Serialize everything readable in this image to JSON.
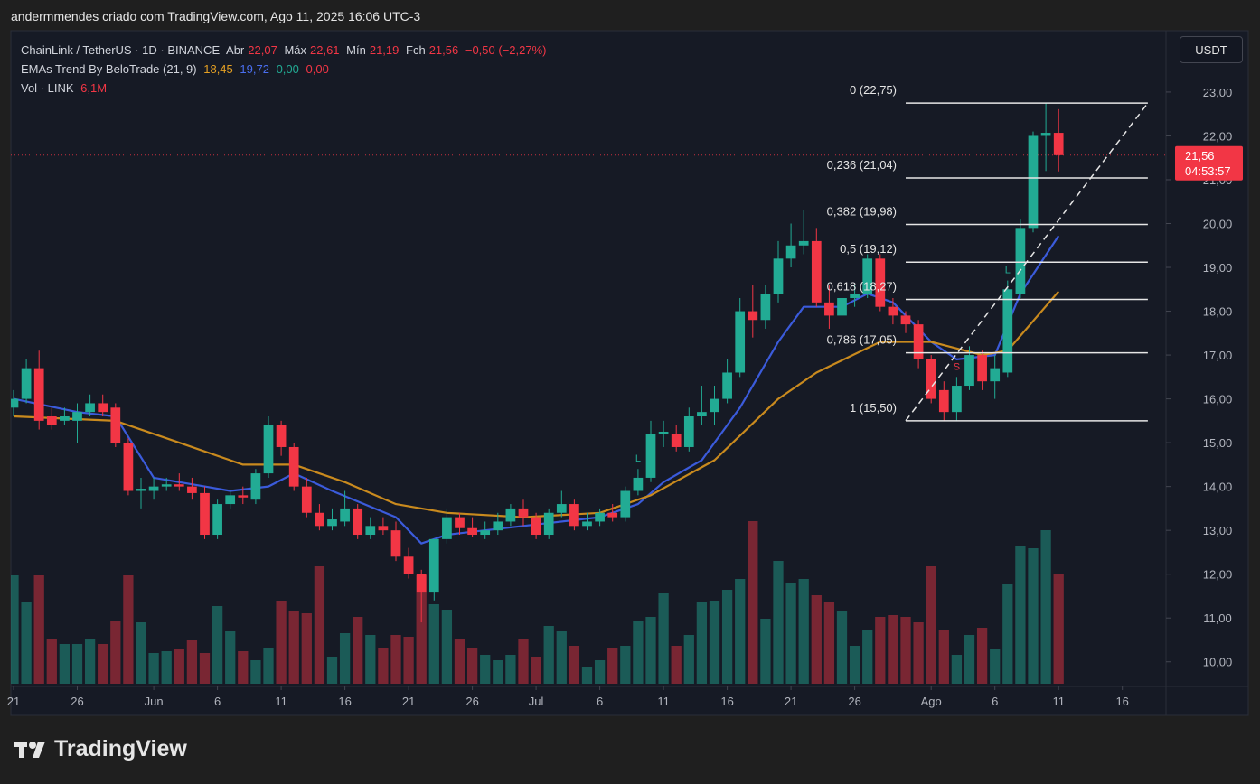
{
  "header": "andermmendes criado com TradingView.com, Ago 11, 2025 16:06 UTC-3",
  "footer": "TradingView",
  "currency": "USDT",
  "chart_data": {
    "type": "candlestick",
    "legend": {
      "symbol": "ChainLink / TetherUS · 1D · BINANCE",
      "open_label": "Abr",
      "open": "22,07",
      "high_label": "Máx",
      "high": "22,61",
      "low_label": "Mín",
      "low": "21,19",
      "close_label": "Fch",
      "close": "21,56",
      "change": "−0,50 (−2,27%)",
      "indicator": "EMAs Trend By BeloTrade (21, 9)",
      "indicator_values": [
        "18,45",
        "19,72",
        "0,00",
        "0,00"
      ],
      "volume_name": "Vol · LINK",
      "volume_value": "6,1M"
    },
    "x": [
      "2025-05-21",
      "2025-05-22",
      "2025-05-23",
      "2025-05-24",
      "2025-05-25",
      "2025-05-26",
      "2025-05-27",
      "2025-05-28",
      "2025-05-29",
      "2025-05-30",
      "2025-05-31",
      "2025-06-01",
      "2025-06-02",
      "2025-06-03",
      "2025-06-04",
      "2025-06-05",
      "2025-06-06",
      "2025-06-07",
      "2025-06-08",
      "2025-06-09",
      "2025-06-10",
      "2025-06-11",
      "2025-06-12",
      "2025-06-13",
      "2025-06-14",
      "2025-06-15",
      "2025-06-16",
      "2025-06-17",
      "2025-06-18",
      "2025-06-19",
      "2025-06-20",
      "2025-06-21",
      "2025-06-22",
      "2025-06-23",
      "2025-06-24",
      "2025-06-25",
      "2025-06-26",
      "2025-06-27",
      "2025-06-28",
      "2025-06-29",
      "2025-06-30",
      "2025-07-01",
      "2025-07-02",
      "2025-07-03",
      "2025-07-04",
      "2025-07-05",
      "2025-07-06",
      "2025-07-07",
      "2025-07-08",
      "2025-07-09",
      "2025-07-10",
      "2025-07-11",
      "2025-07-12",
      "2025-07-13",
      "2025-07-14",
      "2025-07-15",
      "2025-07-16",
      "2025-07-17",
      "2025-07-18",
      "2025-07-19",
      "2025-07-20",
      "2025-07-21",
      "2025-07-22",
      "2025-07-23",
      "2025-07-24",
      "2025-07-25",
      "2025-07-26",
      "2025-07-27",
      "2025-07-28",
      "2025-07-29",
      "2025-07-30",
      "2025-07-31",
      "2025-08-01",
      "2025-08-02",
      "2025-08-03",
      "2025-08-04",
      "2025-08-05",
      "2025-08-06",
      "2025-08-07",
      "2025-08-08",
      "2025-08-09",
      "2025-08-10",
      "2025-08-11"
    ],
    "open": [
      15.8,
      16.0,
      16.7,
      15.6,
      15.5,
      15.5,
      15.7,
      15.9,
      15.8,
      15.0,
      13.9,
      13.9,
      14.0,
      14.05,
      14.0,
      13.85,
      12.9,
      13.6,
      13.8,
      13.7,
      14.3,
      15.4,
      14.9,
      14.0,
      13.4,
      13.1,
      13.2,
      13.5,
      12.9,
      13.1,
      13.0,
      12.4,
      12.0,
      11.6,
      12.8,
      13.3,
      13.05,
      12.9,
      13.0,
      13.2,
      13.5,
      13.3,
      12.9,
      13.4,
      13.6,
      13.1,
      13.2,
      13.4,
      13.3,
      13.9,
      14.2,
      15.2,
      15.2,
      14.9,
      15.6,
      15.7,
      16.0,
      16.6,
      18.0,
      17.8,
      18.4,
      19.2,
      19.5,
      19.6,
      18.2,
      17.9,
      18.3,
      18.4,
      19.2,
      18.1,
      17.9,
      17.7,
      16.9,
      16.2,
      15.7,
      16.3,
      17.0,
      16.4,
      16.6,
      18.4,
      19.9,
      22.0,
      22.07
    ],
    "high": [
      16.2,
      16.9,
      17.1,
      15.8,
      15.8,
      15.9,
      16.1,
      16.1,
      15.9,
      15.1,
      14.2,
      14.2,
      14.2,
      14.3,
      14.2,
      14.0,
      13.7,
      13.9,
      14.0,
      14.4,
      15.6,
      15.5,
      15.0,
      14.2,
      13.6,
      13.5,
      13.9,
      13.6,
      13.3,
      13.3,
      13.2,
      12.6,
      12.1,
      12.8,
      13.5,
      13.4,
      13.3,
      13.2,
      13.4,
      13.6,
      13.7,
      13.4,
      13.5,
      13.9,
      13.7,
      13.4,
      13.5,
      13.6,
      14.0,
      14.4,
      15.5,
      15.5,
      15.4,
      15.8,
      16.3,
      16.3,
      16.9,
      18.3,
      18.6,
      18.6,
      19.6,
      20.0,
      20.3,
      19.9,
      18.6,
      18.4,
      18.6,
      19.3,
      19.3,
      18.3,
      18.0,
      17.8,
      17.0,
      16.4,
      16.5,
      17.2,
      17.1,
      17.0,
      18.7,
      20.1,
      22.1,
      22.75,
      22.61
    ],
    "low": [
      15.6,
      15.9,
      15.3,
      15.3,
      15.4,
      15.0,
      15.6,
      15.6,
      14.9,
      13.8,
      13.5,
      13.7,
      13.9,
      13.9,
      13.7,
      12.8,
      12.8,
      13.5,
      13.6,
      13.6,
      14.2,
      14.7,
      13.9,
      13.3,
      13.0,
      13.0,
      13.1,
      12.8,
      12.8,
      12.9,
      12.3,
      11.9,
      10.9,
      11.4,
      12.7,
      12.9,
      12.85,
      12.8,
      12.9,
      13.1,
      13.1,
      12.8,
      12.8,
      13.3,
      13.0,
      13.0,
      13.1,
      13.2,
      13.2,
      13.8,
      14.1,
      14.9,
      14.8,
      14.8,
      15.4,
      15.4,
      15.9,
      16.5,
      17.4,
      17.6,
      18.2,
      19.0,
      19.3,
      18.1,
      17.6,
      17.6,
      18.1,
      18.3,
      18.0,
      17.7,
      17.5,
      16.7,
      15.9,
      15.5,
      15.5,
      16.2,
      16.2,
      16.0,
      16.5,
      18.3,
      19.8,
      21.2,
      21.19
    ],
    "close": [
      16.0,
      16.7,
      15.5,
      15.4,
      15.6,
      15.7,
      15.9,
      15.7,
      15.0,
      13.9,
      13.95,
      14.0,
      14.05,
      14.0,
      13.85,
      12.9,
      13.6,
      13.8,
      13.75,
      14.3,
      15.4,
      14.9,
      14.0,
      13.4,
      13.1,
      13.25,
      13.5,
      12.9,
      13.1,
      13.0,
      12.4,
      12.0,
      11.6,
      12.8,
      13.3,
      13.05,
      12.9,
      13.0,
      13.2,
      13.5,
      13.3,
      12.9,
      13.4,
      13.6,
      13.1,
      13.2,
      13.4,
      13.3,
      13.9,
      14.2,
      15.2,
      15.25,
      14.9,
      15.6,
      15.7,
      16.0,
      16.6,
      18.0,
      17.8,
      18.4,
      19.2,
      19.5,
      19.6,
      18.2,
      17.9,
      18.3,
      18.4,
      19.2,
      18.1,
      17.9,
      17.7,
      16.9,
      16.0,
      15.7,
      16.3,
      17.0,
      16.4,
      16.7,
      18.5,
      19.9,
      22.0,
      22.07,
      21.56
    ],
    "volume": [
      6.0,
      4.5,
      6.0,
      2.5,
      2.2,
      2.2,
      2.5,
      2.2,
      3.5,
      6.0,
      3.4,
      1.7,
      1.8,
      1.9,
      2.4,
      1.7,
      4.3,
      2.9,
      1.8,
      1.3,
      2.0,
      4.6,
      4.0,
      3.9,
      6.5,
      1.5,
      2.8,
      3.7,
      2.7,
      2.0,
      2.7,
      2.6,
      6.0,
      4.4,
      4.1,
      2.5,
      2.0,
      1.6,
      1.3,
      1.6,
      2.5,
      1.5,
      3.2,
      2.9,
      2.1,
      0.9,
      1.3,
      2.0,
      2.1,
      3.5,
      3.7,
      5.0,
      2.1,
      2.7,
      4.5,
      4.6,
      5.2,
      5.8,
      9.0,
      3.6,
      6.8,
      5.6,
      5.8,
      4.9,
      4.5,
      4.0,
      2.1,
      3.0,
      3.7,
      3.8,
      3.7,
      3.4,
      6.5,
      3.0,
      1.6,
      2.7,
      3.1,
      1.9,
      5.5,
      7.6,
      7.5,
      8.5,
      6.1
    ],
    "up_color": "#22ab94",
    "down_color": "#f23645",
    "series": [
      {
        "name": "EMA 9",
        "color": "#3b5bdb",
        "x": [
          "2025-05-21",
          "2025-05-26",
          "2025-05-29",
          "2025-06-01",
          "2025-06-05",
          "2025-06-07",
          "2025-06-10",
          "2025-06-12",
          "2025-06-15",
          "2025-06-20",
          "2025-06-22",
          "2025-06-24",
          "2025-06-30",
          "2025-07-06",
          "2025-07-09",
          "2025-07-11",
          "2025-07-14",
          "2025-07-17",
          "2025-07-20",
          "2025-07-22",
          "2025-07-25",
          "2025-07-27",
          "2025-07-29",
          "2025-08-01",
          "2025-08-03",
          "2025-08-06",
          "2025-08-08",
          "2025-08-11"
        ],
        "values": [
          16.0,
          15.7,
          15.6,
          14.2,
          14.0,
          13.9,
          14.0,
          14.3,
          13.9,
          13.3,
          12.7,
          12.9,
          13.1,
          13.3,
          13.6,
          14.1,
          14.6,
          15.8,
          17.3,
          18.1,
          18.1,
          18.4,
          18.2,
          17.3,
          16.9,
          17.0,
          18.4,
          19.72
        ]
      },
      {
        "name": "EMA 21",
        "color": "#c98a1e",
        "x": [
          "2025-05-21",
          "2025-05-29",
          "2025-06-03",
          "2025-06-08",
          "2025-06-12",
          "2025-06-16",
          "2025-06-20",
          "2025-06-24",
          "2025-06-30",
          "2025-07-06",
          "2025-07-10",
          "2025-07-15",
          "2025-07-20",
          "2025-07-23",
          "2025-07-28",
          "2025-08-01",
          "2025-08-05",
          "2025-08-07",
          "2025-08-11"
        ],
        "values": [
          15.6,
          15.5,
          15.0,
          14.5,
          14.5,
          14.1,
          13.6,
          13.4,
          13.3,
          13.4,
          13.8,
          14.6,
          16.0,
          16.6,
          17.3,
          17.3,
          17.0,
          17.1,
          18.45
        ]
      }
    ],
    "signals": [
      {
        "date": "2025-07-09",
        "text": "L",
        "color": "#22ab94"
      },
      {
        "date": "2025-08-03",
        "text": "S",
        "color": "#f23645"
      },
      {
        "date": "2025-08-07",
        "text": "L",
        "color": "#22ab94"
      }
    ],
    "fib": {
      "start": "2025-07-30",
      "end": "2025-08-18",
      "levels": [
        {
          "value": 22.75,
          "label": "0 (22,75)"
        },
        {
          "value": 21.04,
          "label": "0,236 (21,04)"
        },
        {
          "value": 19.98,
          "label": "0,382 (19,98)"
        },
        {
          "value": 19.12,
          "label": "0,5 (19,12)"
        },
        {
          "value": 18.27,
          "label": "0,618 (18,27)"
        },
        {
          "value": 17.05,
          "label": "0,786 (17,05)"
        },
        {
          "value": 15.5,
          "label": "1 (15,50)"
        }
      ]
    },
    "price_label": {
      "value": 21.56,
      "label": "21,56",
      "countdown": "04:53:57"
    },
    "xlim": [
      "2025-05-21",
      "2025-08-19"
    ],
    "xticks": [
      {
        "value": "2025-05-21",
        "label": "21"
      },
      {
        "value": "2025-05-26",
        "label": "26"
      },
      {
        "value": "2025-06-01",
        "label": "Jun"
      },
      {
        "value": "2025-06-06",
        "label": "6"
      },
      {
        "value": "2025-06-11",
        "label": "11"
      },
      {
        "value": "2025-06-16",
        "label": "16"
      },
      {
        "value": "2025-06-21",
        "label": "21"
      },
      {
        "value": "2025-06-26",
        "label": "26"
      },
      {
        "value": "2025-07-01",
        "label": "Jul"
      },
      {
        "value": "2025-07-06",
        "label": "6"
      },
      {
        "value": "2025-07-11",
        "label": "11"
      },
      {
        "value": "2025-07-16",
        "label": "16"
      },
      {
        "value": "2025-07-21",
        "label": "21"
      },
      {
        "value": "2025-07-26",
        "label": "26"
      },
      {
        "value": "2025-08-01",
        "label": "Ago"
      },
      {
        "value": "2025-08-06",
        "label": "6"
      },
      {
        "value": "2025-08-11",
        "label": "11"
      },
      {
        "value": "2025-08-16",
        "label": "16"
      }
    ],
    "ylim": [
      9.5,
      24.4
    ],
    "yticks": [
      {
        "value": 10,
        "label": "10,00"
      },
      {
        "value": 11,
        "label": "11,00"
      },
      {
        "value": 12,
        "label": "12,00"
      },
      {
        "value": 13,
        "label": "13,00"
      },
      {
        "value": 14,
        "label": "14,00"
      },
      {
        "value": 15,
        "label": "15,00"
      },
      {
        "value": 16,
        "label": "16,00"
      },
      {
        "value": 17,
        "label": "17,00"
      },
      {
        "value": 18,
        "label": "18,00"
      },
      {
        "value": 19,
        "label": "19,00"
      },
      {
        "value": 20,
        "label": "20,00"
      },
      {
        "value": 21,
        "label": "21,00"
      },
      {
        "value": 22,
        "label": "22,00"
      },
      {
        "value": 23,
        "label": "23,00"
      }
    ]
  }
}
